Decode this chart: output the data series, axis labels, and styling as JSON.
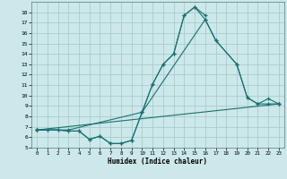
{
  "xlabel": "Humidex (Indice chaleur)",
  "bg_color": "#cce8ea",
  "grid_color": "#aacccc",
  "line_color": "#1a7070",
  "xlim": [
    -0.5,
    23.5
  ],
  "ylim": [
    5,
    19
  ],
  "xticks": [
    0,
    1,
    2,
    3,
    4,
    5,
    6,
    7,
    8,
    9,
    10,
    11,
    12,
    13,
    14,
    15,
    16,
    17,
    18,
    19,
    20,
    21,
    22,
    23
  ],
  "yticks": [
    5,
    6,
    7,
    8,
    9,
    10,
    11,
    12,
    13,
    14,
    15,
    16,
    17,
    18
  ],
  "lines": [
    {
      "x": [
        0,
        1,
        2,
        3,
        4,
        5,
        6,
        7,
        8,
        9,
        10,
        11,
        12,
        13,
        14,
        15,
        16
      ],
      "y": [
        6.7,
        6.7,
        6.7,
        6.6,
        6.6,
        5.8,
        6.1,
        5.4,
        5.4,
        5.7,
        8.4,
        11.1,
        13.0,
        14.0,
        17.7,
        18.5,
        17.7
      ]
    },
    {
      "x": [
        0,
        1,
        2,
        3,
        4,
        5,
        6,
        7,
        8,
        9,
        10,
        11,
        12,
        13,
        14,
        15,
        16,
        17,
        19,
        20,
        21,
        22,
        23
      ],
      "y": [
        6.7,
        6.7,
        6.7,
        6.6,
        6.6,
        5.8,
        6.1,
        5.4,
        5.4,
        5.7,
        8.4,
        11.1,
        13.0,
        14.0,
        17.7,
        18.5,
        17.3,
        15.3,
        13.0,
        9.8,
        9.2,
        9.2,
        9.2
      ]
    },
    {
      "x": [
        0,
        23
      ],
      "y": [
        6.7,
        9.2
      ]
    },
    {
      "x": [
        0,
        3,
        10,
        16,
        17,
        19,
        20,
        21,
        22,
        23
      ],
      "y": [
        6.7,
        6.7,
        8.4,
        17.3,
        15.3,
        13.0,
        9.8,
        9.2,
        9.7,
        9.2
      ]
    }
  ]
}
